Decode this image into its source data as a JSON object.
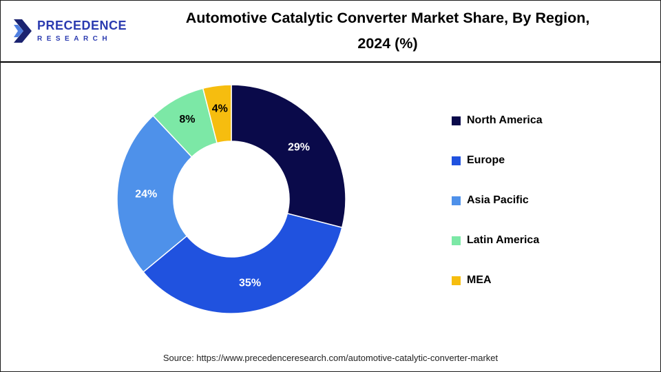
{
  "header": {
    "logo": {
      "line1": "PRECEDENCE",
      "line2": "RESEARCH"
    },
    "title_line1": "Automotive Catalytic Converter Market Share, By Region,",
    "title_line2": "2024 (%)"
  },
  "chart_data": {
    "type": "pie",
    "subtype": "donut",
    "title": "Automotive Catalytic Converter Market Share, By Region, 2024 (%)",
    "categories": [
      "North America",
      "Europe",
      "Asia Pacific",
      "Latin America",
      "MEA"
    ],
    "values": [
      29,
      35,
      24,
      8,
      4
    ],
    "unit": "%",
    "colors": [
      "#0a0a4a",
      "#2052df",
      "#4e91ea",
      "#7ce8a6",
      "#f6bd0f"
    ],
    "label_colors": [
      "#ffffff",
      "#ffffff",
      "#ffffff",
      "#000000",
      "#000000"
    ],
    "start_angle_deg": -90,
    "direction": "clockwise",
    "legend_position": "right",
    "data_labels": [
      "29%",
      "35%",
      "24%",
      "8%",
      "4%"
    ]
  },
  "footer": {
    "source": "Source: https://www.precedenceresearch.com/automotive-catalytic-converter-market"
  }
}
